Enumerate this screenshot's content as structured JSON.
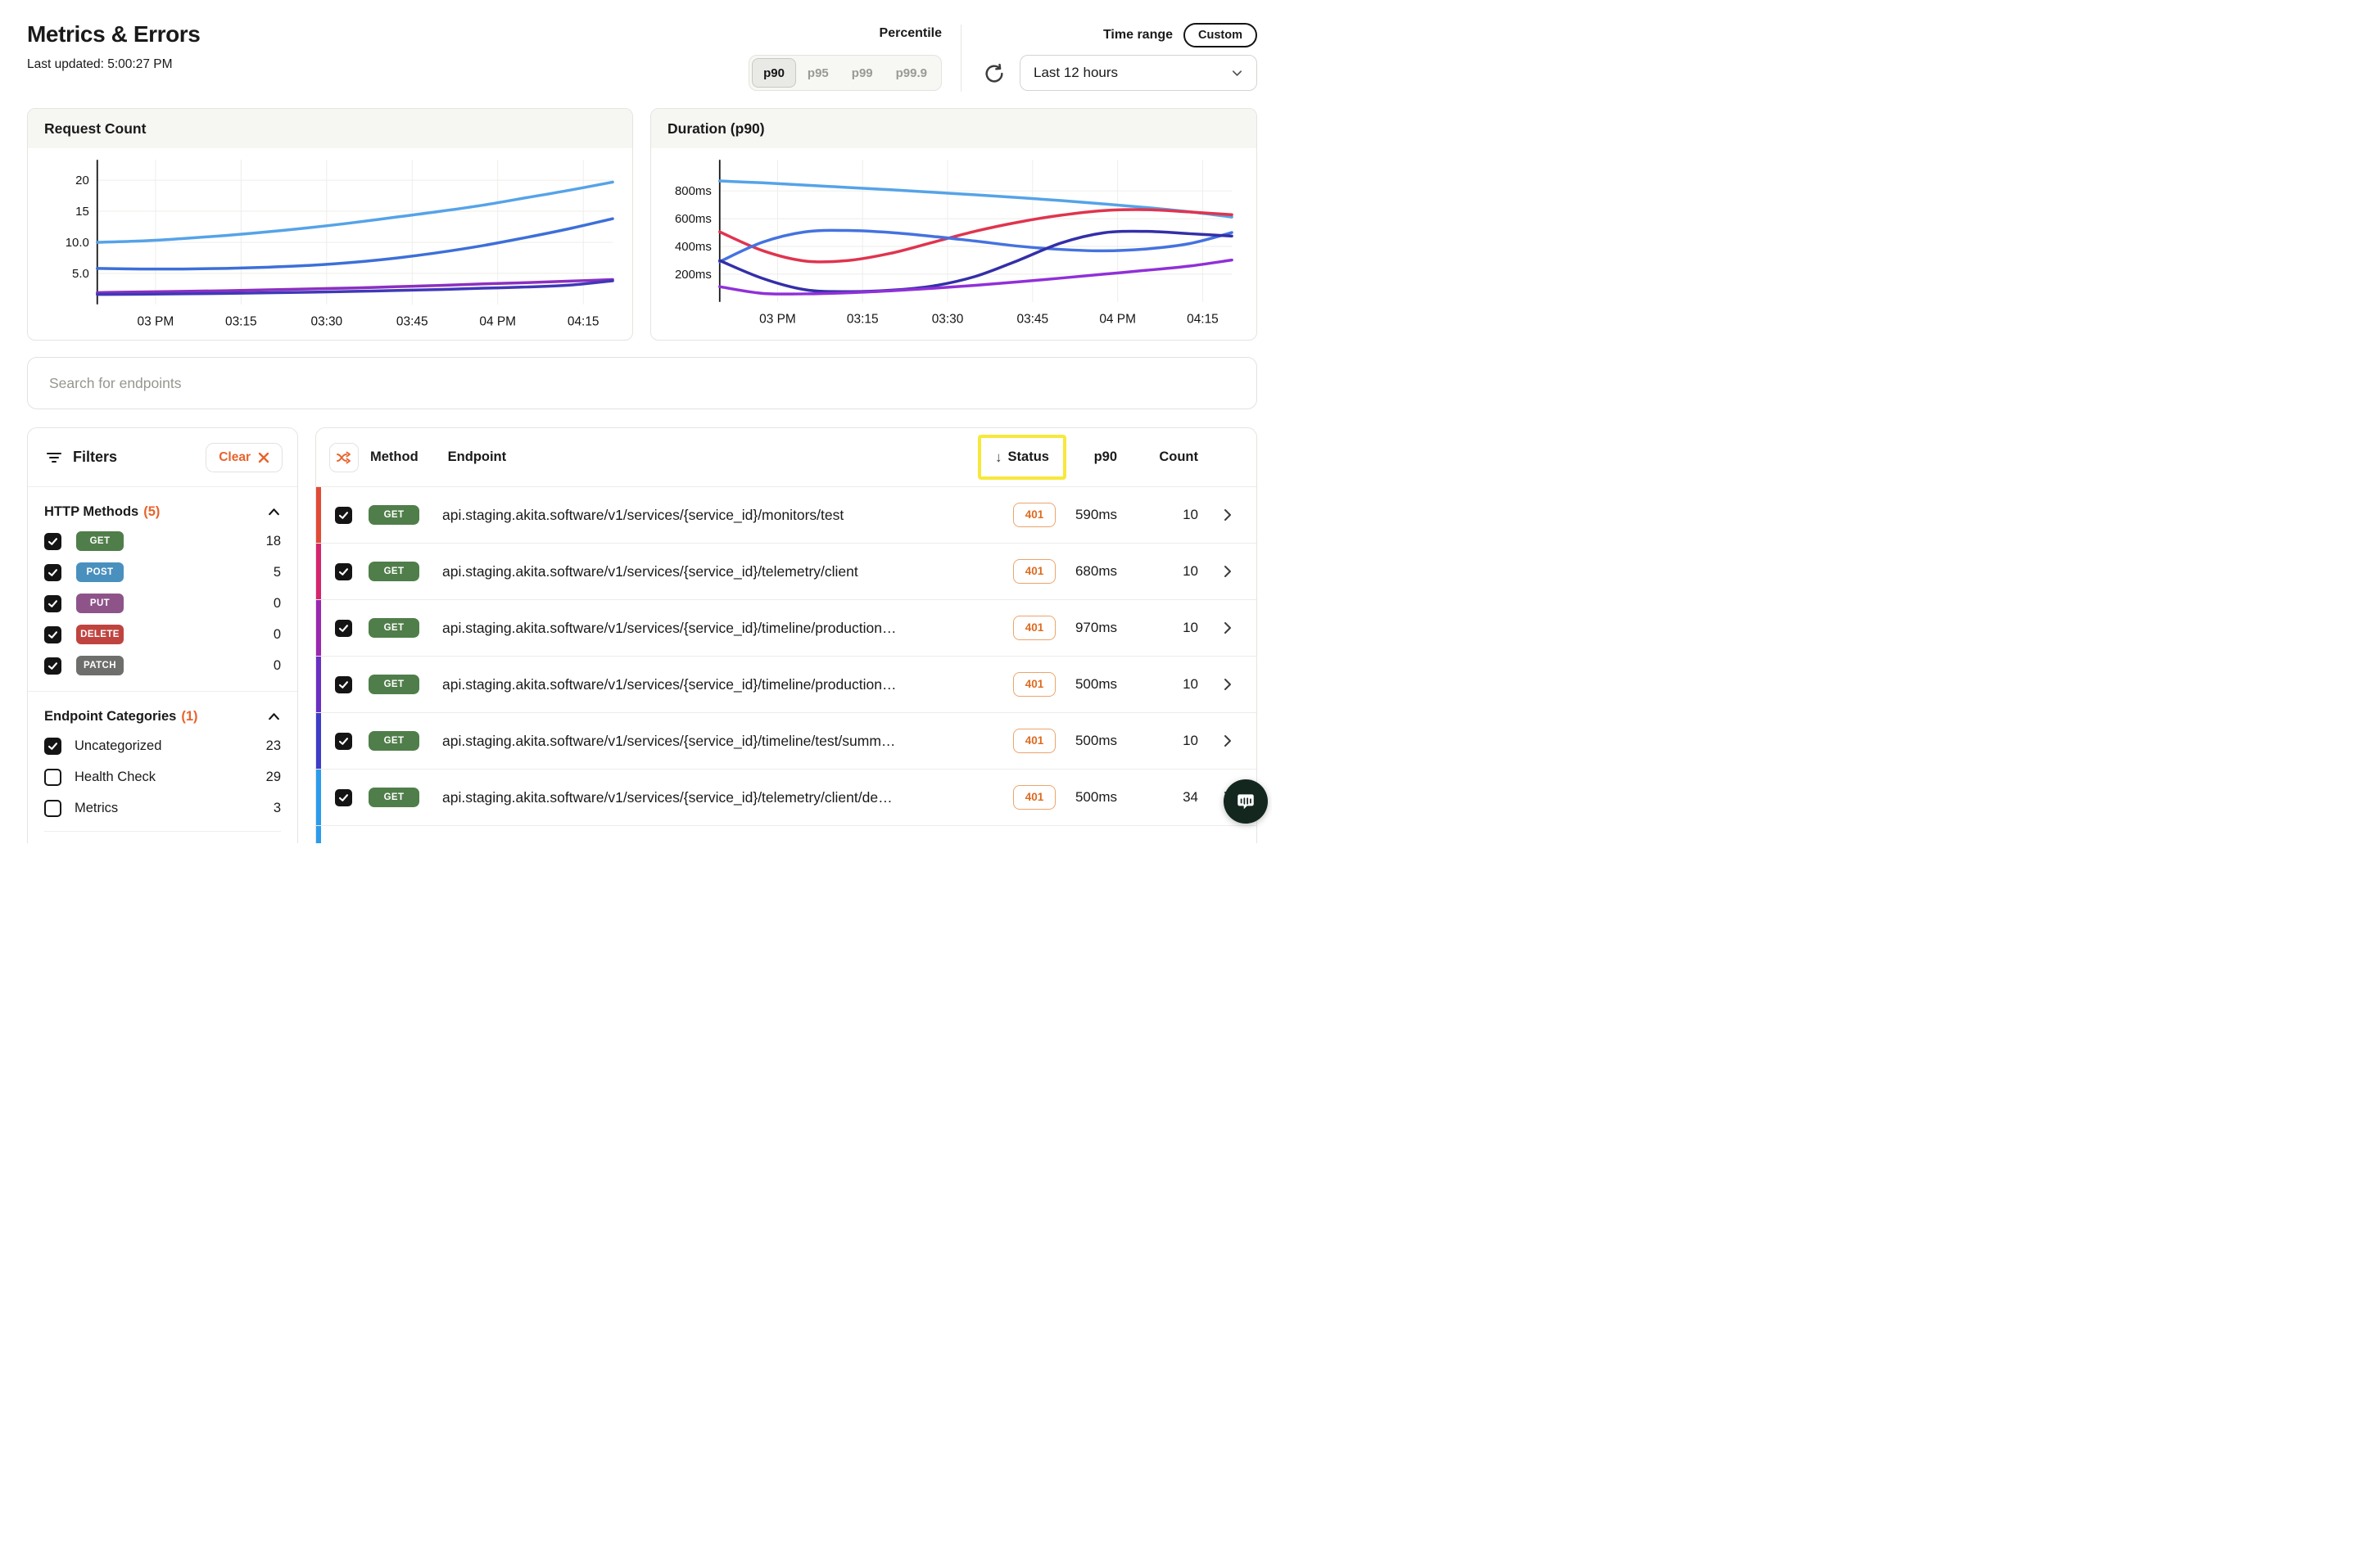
{
  "page": {
    "title": "Metrics & Errors",
    "last_updated": "Last updated: 5:00:27 PM"
  },
  "header": {
    "percentile_label": "Percentile",
    "percentiles": [
      {
        "label": "p90",
        "selected": true
      },
      {
        "label": "p95",
        "selected": false
      },
      {
        "label": "p99",
        "selected": false
      },
      {
        "label": "p99.9",
        "selected": false
      }
    ],
    "time_range_label": "Time range",
    "custom_label": "Custom",
    "range_value": "Last 12 hours"
  },
  "search": {
    "placeholder": "Search for endpoints"
  },
  "filters": {
    "title": "Filters",
    "clear_label": "Clear",
    "http_methods": {
      "title": "HTTP Methods",
      "count_badge": "(5)",
      "items": [
        {
          "label": "GET",
          "count": "18",
          "checked": true,
          "color": "#507e4a"
        },
        {
          "label": "POST",
          "count": "5",
          "checked": true,
          "color": "#4a90be"
        },
        {
          "label": "PUT",
          "count": "0",
          "checked": true,
          "color": "#8e548a"
        },
        {
          "label": "DELETE",
          "count": "0",
          "checked": true,
          "color": "#bf4440"
        },
        {
          "label": "PATCH",
          "count": "0",
          "checked": true,
          "color": "#6e6e6c"
        }
      ]
    },
    "categories": {
      "title": "Endpoint Categories",
      "count_badge": "(1)",
      "items": [
        {
          "label": "Uncategorized",
          "count": "23",
          "checked": true
        },
        {
          "label": "Health Check",
          "count": "29",
          "checked": false
        },
        {
          "label": "Metrics",
          "count": "3",
          "checked": false
        }
      ]
    }
  },
  "table": {
    "headers": {
      "method": "Method",
      "endpoint": "Endpoint",
      "status": "Status",
      "p90": "p90",
      "count": "Count"
    },
    "sort_arrow": "↓",
    "method_badge_color": "#507e4a",
    "rows": [
      {
        "bar_color": "#e24a36",
        "method": "GET",
        "endpoint": "api.staging.akita.software/v1/services/{service_id}/monitors/test",
        "status": "401",
        "p90": "590ms",
        "count": "10"
      },
      {
        "bar_color": "#d6246e",
        "method": "GET",
        "endpoint": "api.staging.akita.software/v1/services/{service_id}/telemetry/client",
        "status": "401",
        "p90": "680ms",
        "count": "10"
      },
      {
        "bar_color": "#9c27b0",
        "method": "GET",
        "endpoint": "api.staging.akita.software/v1/services/{service_id}/timeline/production…",
        "status": "401",
        "p90": "970ms",
        "count": "10"
      },
      {
        "bar_color": "#6930c3",
        "method": "GET",
        "endpoint": "api.staging.akita.software/v1/services/{service_id}/timeline/production…",
        "status": "401",
        "p90": "500ms",
        "count": "10"
      },
      {
        "bar_color": "#3d3dc8",
        "method": "GET",
        "endpoint": "api.staging.akita.software/v1/services/{service_id}/timeline/test/summ…",
        "status": "401",
        "p90": "500ms",
        "count": "10"
      },
      {
        "bar_color": "#2d9bec",
        "method": "GET",
        "endpoint": "api.staging.akita.software/v1/services/{service_id}/telemetry/client/de…",
        "status": "401",
        "p90": "500ms",
        "count": "34"
      },
      {
        "bar_color": "#2d9bec",
        "method": "GET",
        "endpoint": "",
        "status": "",
        "p90": "",
        "count": ""
      }
    ]
  },
  "colors": {
    "accent_orange": "#e8632c",
    "status_badge_orange": "#dd6b20",
    "highlight_yellow": "#f7e83b",
    "intercom_green": "#13271e"
  },
  "chart_data": [
    {
      "type": "line",
      "title": "Request Count",
      "x_ticks": [
        "03 PM",
        "03:15",
        "03:30",
        "03:45",
        "04 PM",
        "04:15"
      ],
      "y_ticks": [
        {
          "value": 20,
          "label": "20"
        },
        {
          "value": 15,
          "label": "15"
        },
        {
          "value": 10,
          "label": "10.0"
        },
        {
          "value": 5,
          "label": "5.0"
        }
      ],
      "ylim": [
        0,
        21.7
      ],
      "grid": true,
      "legend": false,
      "series": [
        {
          "name": "light-blue",
          "color": "#55a3e8",
          "values": [
            10,
            10.2,
            10.6,
            11.1,
            11.7,
            12.4,
            13.2,
            14.1,
            15.0,
            16.0,
            17.2,
            18.4,
            19.7
          ]
        },
        {
          "name": "blue",
          "color": "#3d6fd8",
          "values": [
            5.8,
            5.7,
            5.7,
            5.8,
            6.0,
            6.3,
            6.8,
            7.5,
            8.4,
            9.5,
            10.8,
            12.2,
            13.8
          ]
        },
        {
          "name": "purple",
          "color": "#8c2fc0",
          "values": [
            1.9,
            2.0,
            2.1,
            2.2,
            2.35,
            2.5,
            2.65,
            2.85,
            3.05,
            3.3,
            3.5,
            3.75,
            4.0
          ]
        },
        {
          "name": "indigo",
          "color": "#4038b8",
          "values": [
            1.6,
            1.65,
            1.7,
            1.78,
            1.87,
            1.97,
            2.1,
            2.25,
            2.4,
            2.6,
            2.8,
            3.1,
            3.8
          ]
        }
      ]
    },
    {
      "type": "line",
      "title": "Duration (p90)",
      "x_ticks": [
        "03 PM",
        "03:15",
        "03:30",
        "03:45",
        "04 PM",
        "04:15"
      ],
      "y_ticks": [
        {
          "value": 800,
          "label": "800ms"
        },
        {
          "value": 600,
          "label": "600ms"
        },
        {
          "value": 400,
          "label": "400ms"
        },
        {
          "value": 200,
          "label": "200ms"
        }
      ],
      "ylim": [
        0,
        953
      ],
      "grid": true,
      "legend": false,
      "series": [
        {
          "name": "light-blue",
          "color": "#55a3e8",
          "values": [
            872,
            858,
            842,
            825,
            808,
            790,
            772,
            752,
            730,
            706,
            680,
            650,
            612
          ]
        },
        {
          "name": "red",
          "color": "#e0344e",
          "values": [
            505,
            370,
            295,
            298,
            350,
            430,
            510,
            575,
            625,
            658,
            665,
            648,
            628
          ]
        },
        {
          "name": "blue",
          "color": "#4472e0",
          "values": [
            290,
            430,
            505,
            515,
            500,
            472,
            438,
            402,
            378,
            368,
            382,
            420,
            500
          ]
        },
        {
          "name": "navy",
          "color": "#332fa8",
          "values": [
            298,
            170,
            88,
            74,
            84,
            115,
            185,
            300,
            425,
            498,
            508,
            492,
            475
          ]
        },
        {
          "name": "purple",
          "color": "#9030d8",
          "values": [
            110,
            62,
            58,
            66,
            80,
            98,
            120,
            145,
            172,
            200,
            228,
            258,
            302
          ]
        }
      ]
    }
  ]
}
